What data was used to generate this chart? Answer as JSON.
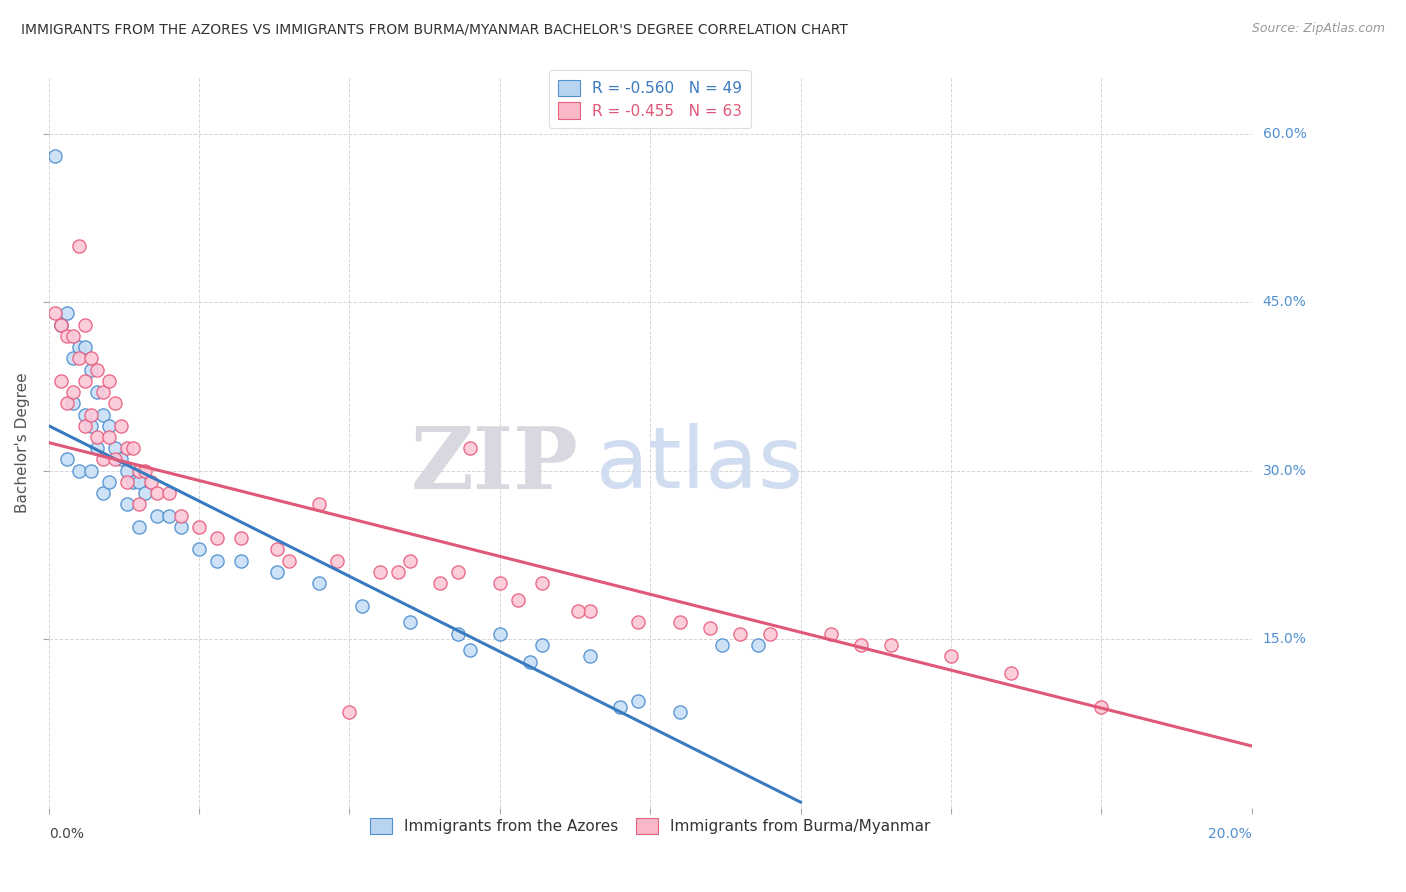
{
  "title": "IMMIGRANTS FROM THE AZORES VS IMMIGRANTS FROM BURMA/MYANMAR BACHELOR'S DEGREE CORRELATION CHART",
  "source": "Source: ZipAtlas.com",
  "ylabel": "Bachelor's Degree",
  "legend1_text": "R = -0.560   N = 49",
  "legend2_text": "R = -0.455   N = 63",
  "legend1_fc": "#b8d4f0",
  "legend2_fc": "#f8b8c8",
  "line1_color": "#3a7abf",
  "line2_color": "#e05878",
  "scatter1_ec": "#5090d0",
  "scatter2_ec": "#e86080",
  "scatter1_fc": "#c8dff5",
  "scatter2_fc": "#fcc8d8",
  "background_color": "#ffffff",
  "grid_color": "#cccccc",
  "watermark_zip": "ZIP",
  "watermark_atlas": "atlas",
  "watermark_zip_color": "#d8d8e0",
  "watermark_atlas_color": "#d0dcf0",
  "right_label_color": "#5090d0",
  "title_color": "#333333",
  "source_color": "#999999",
  "xmin": 0.0,
  "xmax": 0.2,
  "ymin": 0.0,
  "ymax": 0.65,
  "yticks": [
    0.15,
    0.3,
    0.45,
    0.6
  ],
  "ytick_labels": [
    "15.0%",
    "30.0%",
    "45.0%",
    "60.0%"
  ],
  "xtick_left_label": "0.0%",
  "xtick_right_label": "20.0%",
  "azores_line_x0": 0.0,
  "azores_line_x1": 0.125,
  "azores_line_y0": 0.34,
  "azores_line_y1": 0.005,
  "burma_line_x0": 0.0,
  "burma_line_x1": 0.2,
  "burma_line_y0": 0.325,
  "burma_line_y1": 0.055,
  "azores_x": [
    0.001,
    0.002,
    0.002,
    0.003,
    0.003,
    0.004,
    0.004,
    0.005,
    0.005,
    0.006,
    0.006,
    0.007,
    0.007,
    0.007,
    0.008,
    0.008,
    0.009,
    0.009,
    0.01,
    0.01,
    0.011,
    0.012,
    0.013,
    0.013,
    0.014,
    0.015,
    0.015,
    0.016,
    0.018,
    0.02,
    0.022,
    0.025,
    0.028,
    0.032,
    0.038,
    0.045,
    0.052,
    0.06,
    0.068,
    0.075,
    0.082,
    0.09,
    0.098,
    0.105,
    0.112,
    0.118,
    0.07,
    0.08,
    0.095
  ],
  "azores_y": [
    0.58,
    0.43,
    0.43,
    0.44,
    0.31,
    0.4,
    0.36,
    0.41,
    0.3,
    0.41,
    0.35,
    0.39,
    0.34,
    0.3,
    0.37,
    0.32,
    0.35,
    0.28,
    0.34,
    0.29,
    0.32,
    0.31,
    0.3,
    0.27,
    0.29,
    0.29,
    0.25,
    0.28,
    0.26,
    0.26,
    0.25,
    0.23,
    0.22,
    0.22,
    0.21,
    0.2,
    0.18,
    0.165,
    0.155,
    0.155,
    0.145,
    0.135,
    0.095,
    0.085,
    0.145,
    0.145,
    0.14,
    0.13,
    0.09
  ],
  "burma_x": [
    0.001,
    0.002,
    0.002,
    0.003,
    0.003,
    0.004,
    0.004,
    0.005,
    0.005,
    0.006,
    0.006,
    0.006,
    0.007,
    0.007,
    0.008,
    0.008,
    0.009,
    0.009,
    0.01,
    0.01,
    0.011,
    0.011,
    0.012,
    0.013,
    0.013,
    0.014,
    0.015,
    0.015,
    0.016,
    0.017,
    0.018,
    0.02,
    0.022,
    0.025,
    0.028,
    0.032,
    0.038,
    0.04,
    0.048,
    0.055,
    0.06,
    0.068,
    0.075,
    0.082,
    0.09,
    0.098,
    0.11,
    0.115,
    0.13,
    0.14,
    0.058,
    0.065,
    0.078,
    0.088,
    0.105,
    0.12,
    0.135,
    0.15,
    0.16,
    0.175,
    0.045,
    0.05,
    0.07
  ],
  "burma_y": [
    0.44,
    0.43,
    0.38,
    0.42,
    0.36,
    0.42,
    0.37,
    0.5,
    0.4,
    0.43,
    0.38,
    0.34,
    0.4,
    0.35,
    0.39,
    0.33,
    0.37,
    0.31,
    0.38,
    0.33,
    0.36,
    0.31,
    0.34,
    0.32,
    0.29,
    0.32,
    0.3,
    0.27,
    0.3,
    0.29,
    0.28,
    0.28,
    0.26,
    0.25,
    0.24,
    0.24,
    0.23,
    0.22,
    0.22,
    0.21,
    0.22,
    0.21,
    0.2,
    0.2,
    0.175,
    0.165,
    0.16,
    0.155,
    0.155,
    0.145,
    0.21,
    0.2,
    0.185,
    0.175,
    0.165,
    0.155,
    0.145,
    0.135,
    0.12,
    0.09,
    0.27,
    0.085,
    0.32
  ]
}
